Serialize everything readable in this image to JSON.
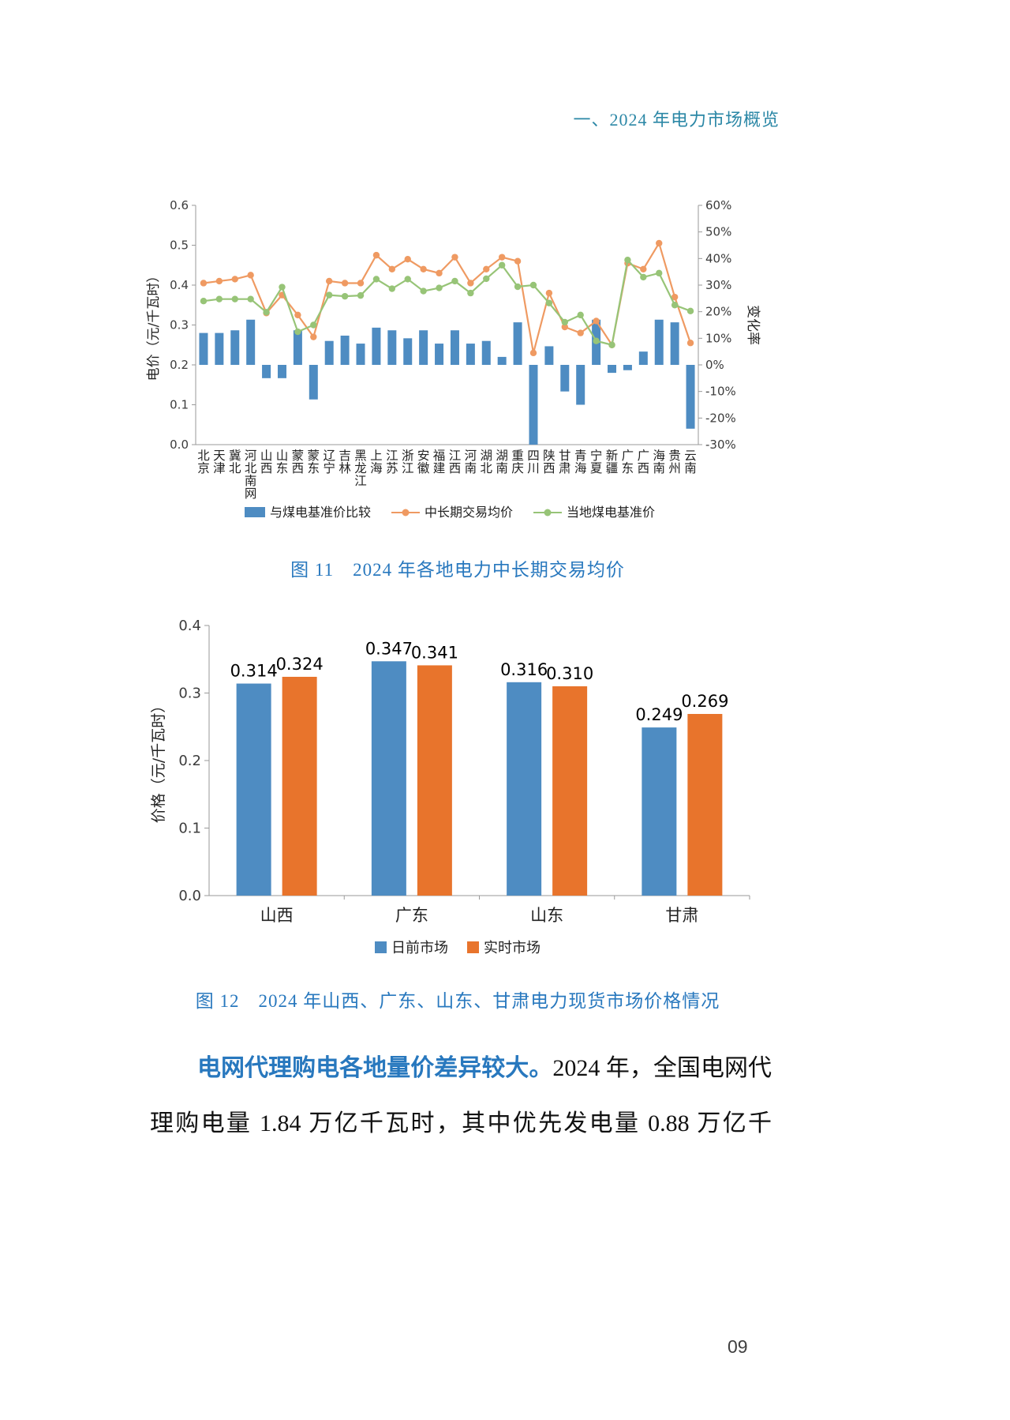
{
  "header": {
    "title": "一、2024 年电力市场概览"
  },
  "figures": {
    "fig11_caption": "图 11　2024 年各地电力中长期交易均价",
    "fig12_caption": "图 12　2024 年山西、广东、山东、甘肃电力现货市场价格情况"
  },
  "paragraph": {
    "lead": "电网代理购电各地量价差异较大。",
    "rest": "2024 年，全国电网代理购电量 1.84 万亿千瓦时，其中优先发电量 0.88 万亿千"
  },
  "footer": {
    "page_number": "09"
  },
  "colors": {
    "bar_blue": "#4E8CC2",
    "bar_orange": "#E8742C",
    "line_orange": "#EF9A62",
    "line_green": "#97C477",
    "caption_blue": "#2878BE",
    "axis_gray": "#9a9a9a",
    "tick_text": "#3c3c3c"
  },
  "chart_data": [
    {
      "type": "bar+line",
      "title": "2024 年各地电力中长期交易均价",
      "ylabel_left": "电价（元/千瓦时）",
      "ylabel_right": "变化率",
      "ylim_left": [
        0,
        0.6
      ],
      "yticks_left": [
        "0.0",
        "0.1",
        "0.2",
        "0.3",
        "0.4",
        "0.5",
        "0.6"
      ],
      "ylim_right_percent": [
        -30,
        60
      ],
      "legend_position": "bottom",
      "grid": false,
      "categories": [
        "北京",
        "天津",
        "冀北",
        "河北南网",
        "山西",
        "山东",
        "蒙西",
        "蒙东",
        "辽宁",
        "吉林",
        "黑龙江",
        "上海",
        "江苏",
        "浙江",
        "安徽",
        "福建",
        "江西",
        "河南",
        "湖北",
        "湖南",
        "重庆",
        "四川",
        "陕西",
        "甘肃",
        "青海",
        "宁夏",
        "新疆",
        "广东",
        "广西",
        "海南",
        "贵州",
        "云南"
      ],
      "series": [
        {
          "name": "与煤电基准价比较",
          "type": "bar",
          "axis": "right",
          "unit": "%",
          "values": [
            12,
            12,
            13,
            17,
            -5,
            -5,
            13,
            -13,
            9,
            11,
            8,
            14,
            13,
            10,
            13,
            8,
            13,
            8,
            9,
            3,
            16,
            -30,
            7,
            -10,
            -15,
            17,
            -3,
            -2,
            5,
            17,
            16,
            -24
          ]
        },
        {
          "name": "中长期交易均价",
          "type": "line",
          "axis": "left",
          "unit": "元/千瓦时",
          "values": [
            0.405,
            0.41,
            0.415,
            0.425,
            0.33,
            0.375,
            0.325,
            0.27,
            0.41,
            0.405,
            0.405,
            0.475,
            0.44,
            0.465,
            0.44,
            0.43,
            0.47,
            0.405,
            0.44,
            0.47,
            0.46,
            0.23,
            0.38,
            0.295,
            0.28,
            0.31,
            0.25,
            0.455,
            0.44,
            0.505,
            0.37,
            0.255
          ]
        },
        {
          "name": "当地煤电基准价",
          "type": "line",
          "axis": "left",
          "unit": "元/千瓦时",
          "values": [
            0.36,
            0.365,
            0.365,
            0.365,
            0.332,
            0.395,
            0.283,
            0.3,
            0.375,
            0.372,
            0.374,
            0.415,
            0.391,
            0.415,
            0.385,
            0.393,
            0.41,
            0.38,
            0.416,
            0.45,
            0.396,
            0.4,
            0.355,
            0.307,
            0.325,
            0.26,
            0.25,
            0.463,
            0.42,
            0.43,
            0.35,
            0.335
          ]
        }
      ]
    },
    {
      "type": "bar",
      "title": "2024 年山西、广东、山东、甘肃电力现货市场价格情况",
      "ylabel": "价格（元/千瓦时）",
      "ylim": [
        0,
        0.4
      ],
      "yticks": [
        "0.0",
        "0.1",
        "0.2",
        "0.3",
        "0.4"
      ],
      "legend_position": "bottom",
      "grid": false,
      "data_labels": true,
      "categories": [
        "山西",
        "广东",
        "山东",
        "甘肃"
      ],
      "series": [
        {
          "name": "日前市场",
          "values": [
            0.314,
            0.347,
            0.316,
            0.249
          ]
        },
        {
          "name": "实时市场",
          "values": [
            0.324,
            0.341,
            0.31,
            0.269
          ]
        }
      ]
    }
  ]
}
